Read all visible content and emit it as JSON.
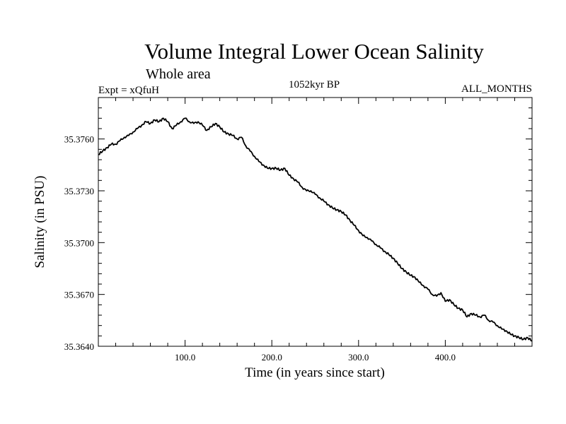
{
  "chart_data": {
    "type": "line",
    "title": "Volume Integral Lower Ocean Salinity",
    "subtitle": "Whole area",
    "experiment_label": "Expt = xQfuH",
    "period_label": "1052kyr BP",
    "months_label": "ALL_MONTHS",
    "xlabel": "Time (in years since start)",
    "ylabel": "Salinity (in PSU)",
    "xlim": [
      0,
      500
    ],
    "ylim": [
      35.364,
      35.3784
    ],
    "xticks": [
      100,
      200,
      300,
      400
    ],
    "xtick_labels": [
      "100.0",
      "200.0",
      "300.0",
      "400.0"
    ],
    "yticks": [
      35.364,
      35.367,
      35.37,
      35.373,
      35.376
    ],
    "ytick_labels": [
      "35.3640",
      "35.3670",
      "35.3700",
      "35.3730",
      "35.3760"
    ],
    "grid": false,
    "series": [
      {
        "name": "Salinity",
        "color": "#000000",
        "x": [
          0,
          5,
          10,
          15,
          20,
          25,
          30,
          35,
          40,
          45,
          50,
          55,
          60,
          65,
          70,
          75,
          80,
          85,
          90,
          95,
          100,
          105,
          110,
          115,
          120,
          125,
          130,
          135,
          140,
          145,
          150,
          155,
          160,
          165,
          170,
          175,
          180,
          185,
          190,
          195,
          200,
          205,
          210,
          215,
          220,
          225,
          230,
          235,
          240,
          245,
          250,
          255,
          260,
          265,
          270,
          275,
          280,
          285,
          290,
          295,
          300,
          305,
          310,
          315,
          320,
          325,
          330,
          335,
          340,
          345,
          350,
          355,
          360,
          365,
          370,
          375,
          380,
          385,
          390,
          395,
          400,
          405,
          410,
          415,
          420,
          425,
          430,
          435,
          440,
          445,
          450,
          455,
          460,
          465,
          470,
          475,
          480,
          485,
          490,
          495,
          500
        ],
        "values": [
          35.3751,
          35.3753,
          35.3755,
          35.3757,
          35.3757,
          35.3759,
          35.3761,
          35.3762,
          35.3764,
          35.3766,
          35.3768,
          35.377,
          35.3769,
          35.3771,
          35.377,
          35.3772,
          35.377,
          35.3766,
          35.3768,
          35.377,
          35.3772,
          35.377,
          35.3769,
          35.377,
          35.3768,
          35.3765,
          35.3767,
          35.3769,
          35.3767,
          35.3764,
          35.3763,
          35.3762,
          35.376,
          35.3761,
          35.3756,
          35.3753,
          35.375,
          35.3747,
          35.3745,
          35.3743,
          35.3743,
          35.3743,
          35.3742,
          35.3743,
          35.3739,
          35.3737,
          35.3735,
          35.3732,
          35.373,
          35.373,
          35.3728,
          35.3726,
          35.3724,
          35.3722,
          35.372,
          35.3719,
          35.3718,
          35.3716,
          35.3713,
          35.371,
          35.3707,
          35.3704,
          35.3703,
          35.3701,
          35.3699,
          35.3697,
          35.3695,
          35.3693,
          35.3691,
          35.3688,
          35.3685,
          35.3683,
          35.3681,
          35.368,
          35.3677,
          35.3675,
          35.3673,
          35.367,
          35.3669,
          35.3671,
          35.3666,
          35.3667,
          35.3664,
          35.3662,
          35.3661,
          35.3657,
          35.3659,
          35.3658,
          35.3657,
          35.3658,
          35.3655,
          35.3654,
          35.3652,
          35.365,
          35.3649,
          35.3647,
          35.3646,
          35.3645,
          35.3644,
          35.3645,
          35.3643
        ]
      }
    ]
  }
}
